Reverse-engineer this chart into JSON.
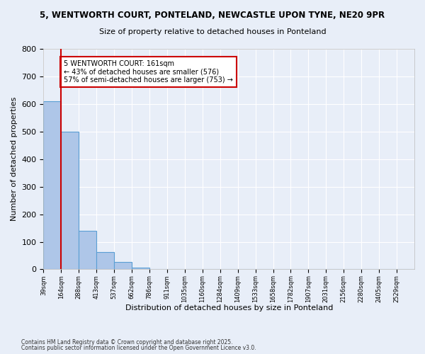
{
  "title1": "5, WENTWORTH COURT, PONTELAND, NEWCASTLE UPON TYNE, NE20 9PR",
  "title2": "Size of property relative to detached houses in Ponteland",
  "xlabel": "Distribution of detached houses by size in Ponteland",
  "ylabel": "Number of detached properties",
  "bins": [
    "39sqm",
    "164sqm",
    "288sqm",
    "413sqm",
    "537sqm",
    "662sqm",
    "786sqm",
    "911sqm",
    "1035sqm",
    "1160sqm",
    "1284sqm",
    "1409sqm",
    "1533sqm",
    "1658sqm",
    "1782sqm",
    "1907sqm",
    "2031sqm",
    "2156sqm",
    "2280sqm",
    "2405sqm",
    "2529sqm"
  ],
  "values": [
    610,
    500,
    140,
    62,
    27,
    6,
    0,
    0,
    0,
    0,
    0,
    0,
    0,
    0,
    0,
    0,
    0,
    0,
    0,
    0,
    0
  ],
  "bar_color": "#aec6e8",
  "bar_edge_color": "#5a9fd4",
  "bg_color": "#e8eef8",
  "grid_color": "#ffffff",
  "vline_x": 1,
  "vline_color": "#cc0000",
  "annotation_text": "5 WENTWORTH COURT: 161sqm\n← 43% of detached houses are smaller (576)\n57% of semi-detached houses are larger (753) →",
  "annotation_box_color": "#ffffff",
  "annotation_box_edge": "#cc0000",
  "ylim": [
    0,
    800
  ],
  "yticks": [
    0,
    100,
    200,
    300,
    400,
    500,
    600,
    700,
    800
  ],
  "footer1": "Contains HM Land Registry data © Crown copyright and database right 2025.",
  "footer2": "Contains public sector information licensed under the Open Government Licence v3.0."
}
